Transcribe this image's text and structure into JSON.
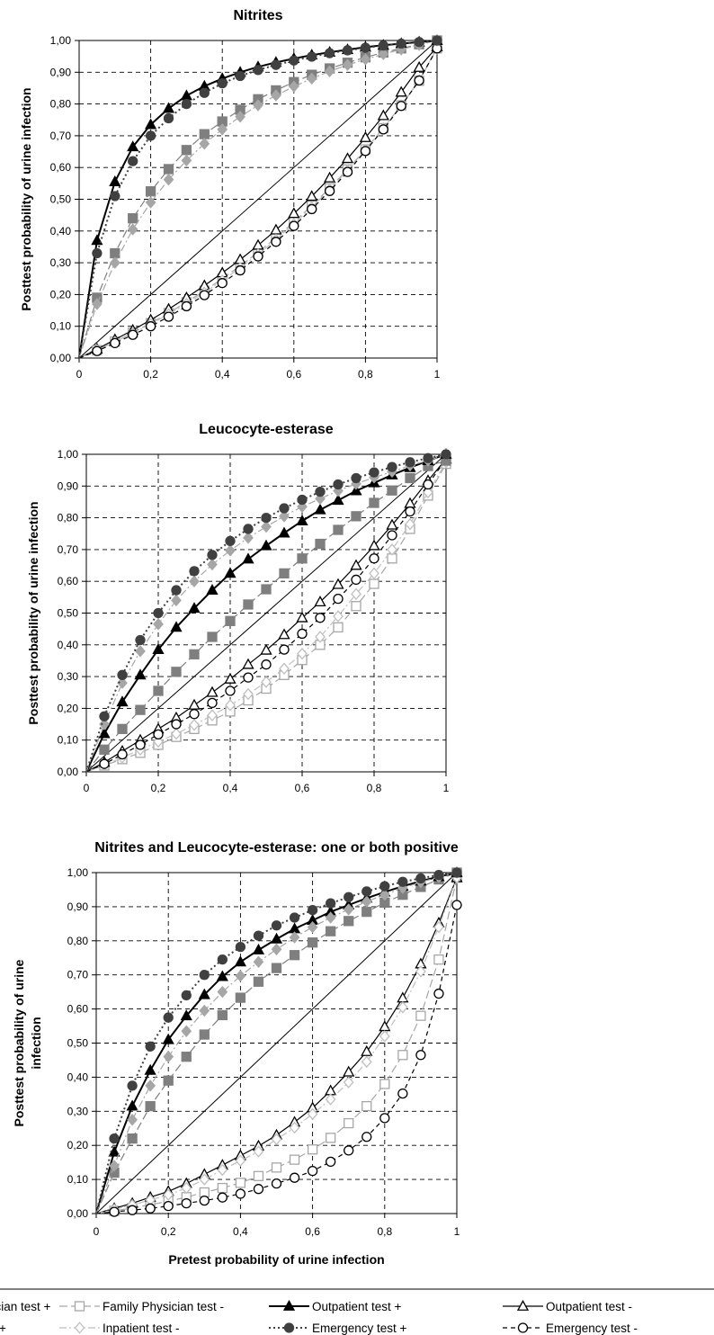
{
  "legend": {
    "entries": [
      {
        "label": "Family Physician test +",
        "symbol": "square",
        "filled": true,
        "color": "#7f7f7f",
        "dash": "long"
      },
      {
        "label": "Family Physician test -",
        "symbol": "square",
        "filled": false,
        "color": "#a6a6a6",
        "dash": "long"
      },
      {
        "label": "Outpatient test +",
        "symbol": "triangle",
        "filled": true,
        "color": "#000000",
        "dash": "solid"
      },
      {
        "label": "Outpatient test -",
        "symbol": "triangle",
        "filled": false,
        "color": "#000000",
        "dash": "solid"
      },
      {
        "label": "Inpatient test +",
        "symbol": "diamond",
        "filled": true,
        "color": "#a6a6a6",
        "dash": "dashdot"
      },
      {
        "label": "Inpatient test -",
        "symbol": "diamond",
        "filled": false,
        "color": "#bfbfbf",
        "dash": "dashdot"
      },
      {
        "label": "Emergency test +",
        "symbol": "circle",
        "filled": true,
        "color": "#404040",
        "dash": "dotted"
      },
      {
        "label": "Emergency test -",
        "symbol": "circle",
        "filled": false,
        "color": "#000000",
        "dash": "dashed"
      }
    ]
  },
  "chart_data": [
    {
      "type": "line",
      "title": "Nitrites",
      "xlabel": "",
      "ylabel": "Posttest probability of urine infection",
      "xlim": [
        0,
        1
      ],
      "ylim": [
        0,
        1
      ],
      "x_ticks": [
        "0",
        "0,2",
        "0,4",
        "0,6",
        "0,8",
        "1"
      ],
      "y_ticks": [
        "0,00",
        "0,10",
        "0,20",
        "0,30",
        "0,40",
        "0,50",
        "0,60",
        "0,70",
        "0,80",
        "0,90",
        "1,00"
      ],
      "grid": "dashed",
      "diagonal": true,
      "x": [
        0,
        0.05,
        0.1,
        0.15,
        0.2,
        0.25,
        0.3,
        0.35,
        0.4,
        0.45,
        0.5,
        0.55,
        0.6,
        0.65,
        0.7,
        0.75,
        0.8,
        0.85,
        0.9,
        0.95,
        1
      ],
      "series": [
        {
          "name": "Family Physician test +",
          "values": [
            0,
            0.19,
            0.33,
            0.44,
            0.525,
            0.595,
            0.655,
            0.705,
            0.745,
            0.782,
            0.815,
            0.843,
            0.869,
            0.892,
            0.912,
            0.93,
            0.947,
            0.962,
            0.975,
            0.988,
            1
          ]
        },
        {
          "name": "Family Physician test -",
          "values": [
            0,
            0.025,
            0.052,
            0.08,
            0.11,
            0.142,
            0.176,
            0.212,
            0.25,
            0.29,
            0.333,
            0.379,
            0.428,
            0.48,
            0.535,
            0.594,
            0.657,
            0.724,
            0.796,
            0.873,
            0.975
          ]
        },
        {
          "name": "Outpatient test +",
          "values": [
            0,
            0.37,
            0.555,
            0.665,
            0.735,
            0.786,
            0.826,
            0.856,
            0.88,
            0.9,
            0.917,
            0.931,
            0.943,
            0.954,
            0.963,
            0.971,
            0.979,
            0.985,
            0.99,
            0.995,
            1
          ]
        },
        {
          "name": "Outpatient test -",
          "values": [
            0,
            0.028,
            0.058,
            0.088,
            0.12,
            0.154,
            0.19,
            0.228,
            0.268,
            0.31,
            0.355,
            0.403,
            0.455,
            0.509,
            0.567,
            0.628,
            0.694,
            0.763,
            0.837,
            0.915,
            0.98
          ]
        },
        {
          "name": "Inpatient test +",
          "values": [
            0,
            0.17,
            0.3,
            0.405,
            0.49,
            0.562,
            0.622,
            0.675,
            0.72,
            0.76,
            0.796,
            0.827,
            0.855,
            0.88,
            0.903,
            0.923,
            0.941,
            0.957,
            0.972,
            0.986,
            1
          ]
        },
        {
          "name": "Inpatient test -",
          "values": [
            0,
            0.025,
            0.051,
            0.078,
            0.107,
            0.138,
            0.171,
            0.206,
            0.244,
            0.284,
            0.327,
            0.373,
            0.422,
            0.475,
            0.531,
            0.591,
            0.655,
            0.723,
            0.796,
            0.875,
            0.975
          ]
        },
        {
          "name": "Emergency test +",
          "values": [
            0,
            0.33,
            0.51,
            0.62,
            0.7,
            0.755,
            0.8,
            0.835,
            0.865,
            0.888,
            0.907,
            0.923,
            0.937,
            0.949,
            0.96,
            0.969,
            0.977,
            0.984,
            0.99,
            0.995,
            1
          ]
        },
        {
          "name": "Emergency test -",
          "values": [
            0,
            0.022,
            0.047,
            0.073,
            0.1,
            0.13,
            0.163,
            0.198,
            0.236,
            0.276,
            0.32,
            0.366,
            0.416,
            0.469,
            0.526,
            0.586,
            0.652,
            0.72,
            0.794,
            0.874,
            0.975
          ]
        }
      ]
    },
    {
      "type": "line",
      "title": "Leucocyte-esterase",
      "xlabel": "",
      "ylabel": "Posttest probability of urine infection",
      "xlim": [
        0,
        1
      ],
      "ylim": [
        0,
        1
      ],
      "x_ticks": [
        "0",
        "0,2",
        "0,4",
        "0,6",
        "0,8",
        "1"
      ],
      "y_ticks": [
        "0,00",
        "0,10",
        "0,20",
        "0,30",
        "0,40",
        "0,50",
        "0,60",
        "0,70",
        "0,80",
        "0,90",
        "1,00"
      ],
      "grid": "dashed",
      "diagonal": true,
      "x": [
        0,
        0.05,
        0.1,
        0.15,
        0.2,
        0.25,
        0.3,
        0.35,
        0.4,
        0.45,
        0.5,
        0.55,
        0.6,
        0.65,
        0.7,
        0.75,
        0.8,
        0.85,
        0.9,
        0.95,
        1
      ],
      "series": [
        {
          "name": "Family Physician test +",
          "values": [
            0,
            0.07,
            0.135,
            0.195,
            0.255,
            0.315,
            0.37,
            0.425,
            0.475,
            0.527,
            0.575,
            0.625,
            0.672,
            0.718,
            0.762,
            0.805,
            0.847,
            0.886,
            0.925,
            0.963,
            0.98
          ]
        },
        {
          "name": "Family Physician test -",
          "values": [
            0,
            0.02,
            0.04,
            0.06,
            0.085,
            0.11,
            0.135,
            0.162,
            0.19,
            0.225,
            0.262,
            0.305,
            0.352,
            0.4,
            0.455,
            0.522,
            0.592,
            0.672,
            0.765,
            0.87,
            0.97
          ]
        },
        {
          "name": "Outpatient test +",
          "values": [
            0,
            0.12,
            0.22,
            0.305,
            0.385,
            0.455,
            0.515,
            0.572,
            0.625,
            0.67,
            0.712,
            0.752,
            0.79,
            0.825,
            0.855,
            0.885,
            0.91,
            0.935,
            0.958,
            0.98,
            1
          ]
        },
        {
          "name": "Outpatient test -",
          "values": [
            0,
            0.03,
            0.065,
            0.1,
            0.135,
            0.17,
            0.21,
            0.25,
            0.292,
            0.338,
            0.383,
            0.432,
            0.485,
            0.535,
            0.59,
            0.65,
            0.712,
            0.777,
            0.845,
            0.917,
            0.985
          ]
        },
        {
          "name": "Inpatient test +",
          "values": [
            0,
            0.15,
            0.28,
            0.38,
            0.465,
            0.54,
            0.6,
            0.653,
            0.697,
            0.737,
            0.772,
            0.805,
            0.835,
            0.86,
            0.885,
            0.907,
            0.927,
            0.945,
            0.965,
            0.98,
            1
          ]
        },
        {
          "name": "Inpatient test -",
          "values": [
            0,
            0.022,
            0.045,
            0.07,
            0.095,
            0.12,
            0.148,
            0.178,
            0.21,
            0.245,
            0.283,
            0.325,
            0.372,
            0.425,
            0.49,
            0.56,
            0.625,
            0.7,
            0.78,
            0.88,
            0.975
          ]
        },
        {
          "name": "Emergency test +",
          "values": [
            0,
            0.175,
            0.305,
            0.415,
            0.5,
            0.572,
            0.632,
            0.683,
            0.727,
            0.765,
            0.8,
            0.83,
            0.857,
            0.882,
            0.905,
            0.925,
            0.943,
            0.96,
            0.975,
            0.988,
            1
          ]
        },
        {
          "name": "Emergency test -",
          "values": [
            0,
            0.025,
            0.055,
            0.085,
            0.118,
            0.15,
            0.182,
            0.217,
            0.255,
            0.297,
            0.338,
            0.385,
            0.435,
            0.485,
            0.545,
            0.605,
            0.672,
            0.745,
            0.82,
            0.905,
            0.985
          ]
        }
      ]
    },
    {
      "type": "line",
      "title": "Nitrites and Leucocyte-esterase: one or both positive",
      "xlabel": "Pretest probability of urine infection",
      "ylabel": "Posttest probability of urine infection",
      "xlim": [
        0,
        1
      ],
      "ylim": [
        0,
        1
      ],
      "x_ticks": [
        "0",
        "0,2",
        "0,4",
        "0,6",
        "0,8",
        "1"
      ],
      "y_ticks": [
        "0,00",
        "0,10",
        "0,20",
        "0,30",
        "0,40",
        "0,50",
        "0,60",
        "0,70",
        "0,80",
        "0,90",
        "1,00"
      ],
      "grid": "dashed",
      "diagonal": true,
      "x": [
        0,
        0.05,
        0.1,
        0.15,
        0.2,
        0.25,
        0.3,
        0.35,
        0.4,
        0.45,
        0.5,
        0.55,
        0.6,
        0.65,
        0.7,
        0.75,
        0.8,
        0.85,
        0.9,
        0.95,
        1
      ],
      "series": [
        {
          "name": "Family Physician test +",
          "values": [
            0,
            0.12,
            0.22,
            0.315,
            0.39,
            0.46,
            0.525,
            0.582,
            0.633,
            0.68,
            0.72,
            0.758,
            0.795,
            0.828,
            0.858,
            0.885,
            0.912,
            0.935,
            0.958,
            0.98,
            1
          ]
        },
        {
          "name": "Family Physician test -",
          "values": [
            0,
            0.008,
            0.016,
            0.026,
            0.036,
            0.048,
            0.062,
            0.075,
            0.09,
            0.11,
            0.135,
            0.158,
            0.188,
            0.222,
            0.265,
            0.315,
            0.38,
            0.465,
            0.58,
            0.745,
            0.985
          ]
        },
        {
          "name": "Outpatient test +",
          "values": [
            0,
            0.18,
            0.315,
            0.42,
            0.51,
            0.58,
            0.642,
            0.695,
            0.738,
            0.773,
            0.805,
            0.835,
            0.86,
            0.885,
            0.905,
            0.925,
            0.943,
            0.96,
            0.975,
            0.988,
            1
          ]
        },
        {
          "name": "Outpatient test -",
          "values": [
            0,
            0.015,
            0.03,
            0.048,
            0.065,
            0.088,
            0.115,
            0.142,
            0.17,
            0.198,
            0.23,
            0.268,
            0.31,
            0.36,
            0.415,
            0.475,
            0.548,
            0.632,
            0.732,
            0.852,
            0.985
          ]
        },
        {
          "name": "Inpatient test +",
          "values": [
            0,
            0.14,
            0.275,
            0.375,
            0.46,
            0.535,
            0.595,
            0.65,
            0.697,
            0.738,
            0.775,
            0.81,
            0.84,
            0.868,
            0.892,
            0.915,
            0.935,
            0.955,
            0.972,
            0.987,
            1
          ]
        },
        {
          "name": "Inpatient test -",
          "values": [
            0,
            0.012,
            0.025,
            0.04,
            0.055,
            0.075,
            0.1,
            0.128,
            0.155,
            0.182,
            0.218,
            0.252,
            0.292,
            0.335,
            0.385,
            0.445,
            0.52,
            0.605,
            0.71,
            0.84,
            0.985
          ]
        },
        {
          "name": "Emergency test +",
          "values": [
            0,
            0.22,
            0.375,
            0.49,
            0.575,
            0.64,
            0.7,
            0.745,
            0.782,
            0.815,
            0.845,
            0.868,
            0.89,
            0.91,
            0.928,
            0.945,
            0.96,
            0.973,
            0.983,
            0.993,
            1
          ]
        },
        {
          "name": "Emergency test -",
          "values": [
            0,
            0.005,
            0.01,
            0.015,
            0.022,
            0.03,
            0.038,
            0.047,
            0.058,
            0.072,
            0.088,
            0.105,
            0.125,
            0.152,
            0.185,
            0.225,
            0.28,
            0.352,
            0.465,
            0.645,
            0.905
          ]
        }
      ]
    }
  ]
}
